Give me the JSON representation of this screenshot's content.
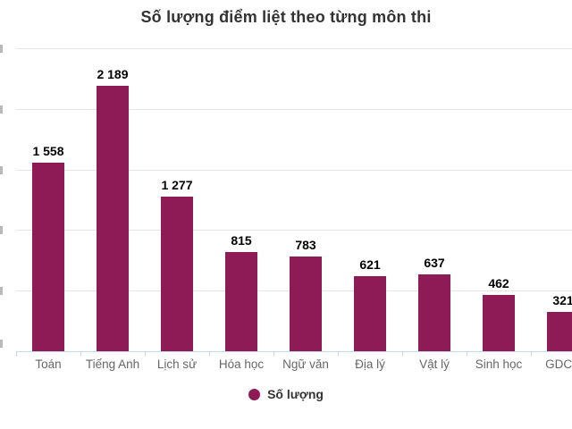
{
  "chart_data": {
    "type": "bar",
    "title": "Số lượng điểm liệt theo từng môn thi",
    "categories": [
      "Toán",
      "Tiếng Anh",
      "Lịch sử",
      "Hóa học",
      "Ngữ văn",
      "Địa lý",
      "Vật lý",
      "Sinh học",
      "GDCD"
    ],
    "values": [
      1558,
      2189,
      1277,
      815,
      783,
      621,
      637,
      462,
      321
    ],
    "value_labels": [
      "1 558",
      "2 189",
      "1 277",
      "815",
      "783",
      "621",
      "637",
      "462",
      "321"
    ],
    "series_name": "Số lượng",
    "xlabel": "",
    "ylabel": "",
    "ylim": [
      0,
      2500
    ],
    "gridline_step": 500,
    "grid": true,
    "legend_position": "bottom-center",
    "colors": {
      "bar": "#8E1B56",
      "title": "#333333",
      "data_label": "#000000",
      "axis_label": "#666666",
      "gridline": "#E6E6E6",
      "axis_line": "#CCD6EB",
      "background": "#FFFFFF"
    }
  }
}
